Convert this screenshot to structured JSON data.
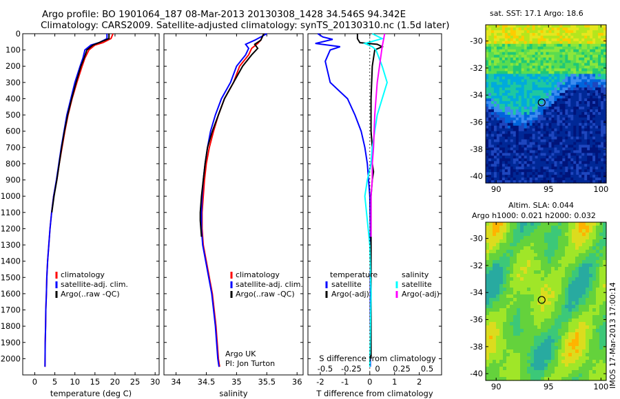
{
  "title_line1": "Argo profile: BO 1901064_187 08-Mar-2013 20130308_1428 34.546S 94.342E",
  "title_line2": "Climatology: CARS2009. Satellite-adjusted climatology: synTS_20130310.nc (1.5d later)",
  "colors": {
    "climatology": "#ff0000",
    "satellite": "#0000ff",
    "argo": "#000000",
    "satellite_salinity": "#00ffff",
    "argo_salinity": "#ff00ff"
  },
  "chart_data": [
    {
      "type": "line",
      "ylabel": "",
      "xlabel": "temperature (deg C)",
      "xlim": [
        -3,
        31
      ],
      "ylim": [
        2100,
        0
      ],
      "xticks": [
        "0",
        "5",
        "10",
        "15",
        "20",
        "25",
        "30"
      ],
      "yticks": [
        "0",
        "100",
        "200",
        "300",
        "400",
        "500",
        "600",
        "700",
        "800",
        "900",
        "1000",
        "1100",
        "1200",
        "1300",
        "1400",
        "1500",
        "1600",
        "1700",
        "1800",
        "1900",
        "2000"
      ],
      "legend": [
        "climatology",
        "satellite-adj. clim.",
        "Argo(..raw -QC)"
      ],
      "series": [
        {
          "name": "climatology",
          "color": "#ff0000",
          "x": [
            19.5,
            19,
            17,
            15,
            13.5,
            12.5,
            11.8,
            10.5,
            9.3,
            8.3,
            7.5,
            6.8,
            6.1,
            5.5,
            4.7,
            4.2,
            3.8,
            3.5,
            3.2,
            3.0,
            2.9,
            2.75,
            2.7,
            2.6,
            2.55
          ],
          "y": [
            0,
            30,
            55,
            70,
            100,
            150,
            200,
            300,
            400,
            500,
            600,
            700,
            800,
            900,
            1000,
            1100,
            1200,
            1300,
            1400,
            1500,
            1600,
            1700,
            1800,
            1900,
            2050
          ]
        },
        {
          "name": "satellite-adj. clim.",
          "color": "#0000ff",
          "x": [
            18,
            18,
            16,
            14,
            12.5,
            12,
            11.3,
            10,
            9,
            8,
            7.3,
            6.6,
            6.0,
            5.4,
            4.7,
            4.2,
            3.8,
            3.5,
            3.2,
            3.0,
            2.9,
            2.75,
            2.7,
            2.6,
            2.55
          ],
          "y": [
            0,
            30,
            55,
            70,
            100,
            150,
            200,
            300,
            400,
            500,
            600,
            700,
            800,
            900,
            1000,
            1100,
            1200,
            1300,
            1400,
            1500,
            1600,
            1700,
            1800,
            1900,
            2050
          ]
        },
        {
          "name": "Argo(..raw -QC)",
          "color": "#000000",
          "x": [
            18.5,
            18.5,
            16,
            14.5,
            13,
            12.3,
            11.5,
            10.3,
            9.2,
            8.2,
            7.4,
            6.7,
            6.1,
            5.5,
            4.8,
            4.25
          ],
          "y": [
            0,
            30,
            55,
            70,
            100,
            150,
            200,
            300,
            400,
            500,
            600,
            700,
            800,
            900,
            1000,
            1100
          ]
        }
      ]
    },
    {
      "type": "line",
      "xlabel": "salinity",
      "xlim": [
        33.8,
        36.1
      ],
      "ylim": [
        2100,
        0
      ],
      "xticks": [
        "34",
        "34.5",
        "35",
        "35.5",
        "36"
      ],
      "legend": [
        "climatology",
        "satellite-adj. clim.",
        "Argo(..raw -QC)"
      ],
      "annotation": [
        "Argo UK",
        "PI: Jon Turton"
      ],
      "series": [
        {
          "name": "climatology",
          "color": "#ff0000",
          "x": [
            35.45,
            35.4,
            35.35,
            35.25,
            35.2,
            35.05,
            34.95,
            34.8,
            34.7,
            34.62,
            34.55,
            34.5,
            34.47,
            34.45,
            34.43,
            34.43,
            34.45,
            34.5,
            34.55,
            34.6,
            34.63,
            34.66,
            34.68,
            34.7,
            34.72
          ],
          "y": [
            0,
            40,
            60,
            90,
            130,
            200,
            300,
            400,
            500,
            600,
            700,
            800,
            900,
            1000,
            1100,
            1200,
            1300,
            1400,
            1500,
            1600,
            1700,
            1800,
            1900,
            2000,
            2050
          ]
        },
        {
          "name": "satellite-adj. clim.",
          "color": "#0000ff",
          "x": [
            35.5,
            35.3,
            35.15,
            35.2,
            35.15,
            35,
            34.9,
            34.75,
            34.65,
            34.57,
            34.52,
            34.48,
            34.45,
            34.43,
            34.42,
            34.42,
            34.44,
            34.49,
            34.54,
            34.59,
            34.62,
            34.65,
            34.67,
            34.69,
            34.71
          ],
          "y": [
            0,
            40,
            65,
            90,
            130,
            200,
            300,
            400,
            500,
            600,
            700,
            800,
            900,
            1000,
            1100,
            1200,
            1300,
            1400,
            1500,
            1600,
            1700,
            1800,
            1900,
            2000,
            2050
          ]
        },
        {
          "name": "Argo(..raw -QC)",
          "color": "#000000",
          "x": [
            35.45,
            35.4,
            35.3,
            35.35,
            35.25,
            35.1,
            34.95,
            34.8,
            34.7,
            34.6,
            34.52,
            34.48,
            34.45,
            34.42,
            34.4,
            34.4,
            34.42
          ],
          "y": [
            0,
            40,
            65,
            90,
            130,
            200,
            300,
            400,
            500,
            600,
            700,
            800,
            900,
            1000,
            1100,
            1150,
            1250
          ]
        }
      ]
    },
    {
      "type": "line",
      "xlabel": "T difference from climatology",
      "xlabel_top": "S difference from climatology",
      "xlim": [
        -2.5,
        2.9
      ],
      "ylim": [
        2100,
        0
      ],
      "xticks": [
        "-2",
        "-1",
        "0",
        "1",
        "2"
      ],
      "xticks_top": [
        "-0.5",
        "-0.25",
        "0",
        "0.25",
        "0.5"
      ],
      "legend_groups": [
        "temperature",
        "salinity"
      ],
      "legend": [
        "satellite",
        "Argo(-adj)",
        "satellite",
        "Argo(-adj)"
      ],
      "series": [
        {
          "name": "satellite",
          "color": "#0000ff",
          "x": [
            -2.1,
            -1.9,
            -1.5,
            -2.2,
            -1.2,
            -1.6,
            -1.8,
            -1.6,
            -0.9,
            -0.6,
            -0.35,
            -0.2,
            -0.1,
            -0.05,
            0,
            0.02,
            0.02,
            0.02,
            0.02,
            0.02,
            0.02
          ],
          "y": [
            0,
            20,
            35,
            60,
            80,
            100,
            170,
            300,
            400,
            500,
            600,
            700,
            800,
            900,
            1000,
            1200,
            1400,
            1600,
            1800,
            1950,
            2050
          ]
        },
        {
          "name": "Argo(-adj)",
          "color": "#000000",
          "x": [
            -0.5,
            -0.5,
            -0.4,
            0.3,
            0.5,
            0.2,
            0.1,
            0.05,
            0.05,
            0.05,
            0.1,
            0.1,
            0.15,
            0.1,
            0.05,
            0.05,
            0.05,
            0.05,
            0.05
          ],
          "y": [
            0,
            30,
            55,
            65,
            80,
            100,
            200,
            400,
            500,
            600,
            700,
            800,
            850,
            900,
            1000,
            1300,
            1600,
            1900,
            2000
          ]
        },
        {
          "name": "satellite",
          "color": "#00ffff",
          "x": [
            0.1,
            0.5,
            -0.2,
            0.1,
            0.25,
            0.5,
            0.7,
            0.5,
            0.3,
            0.2,
            0.1,
            0.05,
            -0.1,
            -0.2,
            0,
            0.05,
            0.0
          ],
          "y": [
            0,
            30,
            60,
            80,
            100,
            200,
            300,
            400,
            500,
            600,
            700,
            800,
            900,
            1000,
            1300,
            1600,
            2050
          ]
        },
        {
          "name": "Argo(-adj)",
          "color": "#ff00ff",
          "x": [
            0.6,
            0.5,
            0.3,
            0.2,
            0.15,
            0.1,
            0.1,
            0.05,
            0.05,
            0.05
          ],
          "y": [
            0,
            80,
            300,
            500,
            700,
            800,
            900,
            1000,
            1200,
            1250
          ]
        }
      ]
    },
    {
      "type": "heatmap",
      "title": "sat. SST: 17.1 Argo: 18.6",
      "xlim": [
        89,
        100.5
      ],
      "ylim": [
        -40.5,
        -28.8
      ],
      "xticks": [
        "90",
        "95",
        "100"
      ],
      "yticks": [
        "-30",
        "-32",
        "-34",
        "-36",
        "-38",
        "-40"
      ],
      "marker": {
        "lon": 94.342,
        "lat": -34.546
      }
    },
    {
      "type": "heatmap",
      "title": "Altim. SLA: 0.044",
      "subtitle": "Argo h1000: 0.021 h2000: 0.032",
      "xlim": [
        89,
        100.5
      ],
      "ylim": [
        -40.5,
        -28.8
      ],
      "xticks": [
        "90",
        "95",
        "100"
      ],
      "yticks": [
        "-30",
        "-32",
        "-34",
        "-36",
        "-38",
        "-40"
      ],
      "marker": {
        "lon": 94.342,
        "lat": -34.546
      }
    }
  ],
  "side_stamp": "IMOS 17-Mar-2013 17:00:14"
}
